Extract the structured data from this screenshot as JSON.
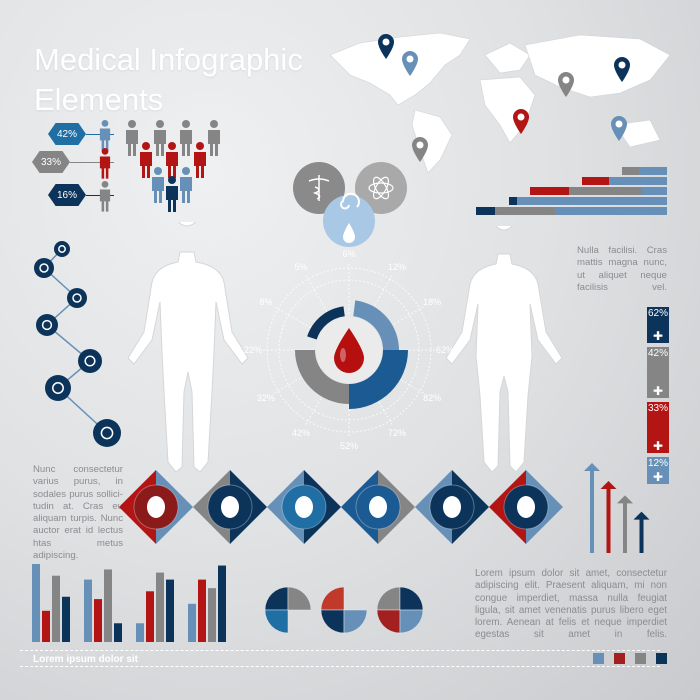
{
  "title": {
    "line1": "Medical Infographic",
    "line2": "Elements"
  },
  "colors": {
    "navy": "#0c335a",
    "blue": "#1b5a92",
    "lightblue": "#6690b7",
    "red": "#b31414",
    "gray": "#858585",
    "paleblue": "#a9c8e6"
  },
  "people_stats": [
    {
      "value": "42%",
      "color": "#1f6fa5"
    },
    {
      "value": "33%",
      "color": "#858585"
    },
    {
      "value": "16%",
      "color": "#0c335a"
    }
  ],
  "ring_chart": {
    "center_icon": "blood-drop-icon",
    "labels": [
      "6%",
      "12%",
      "18%",
      "62%",
      "82%",
      "72%",
      "52%",
      "42%",
      "32%",
      "22%",
      "8%",
      "5%"
    ],
    "segments": [
      {
        "color": "#0c335a",
        "start_pct": 80,
        "end_pct": 98
      },
      {
        "color": "#6690b7",
        "start_pct": 2,
        "end_pct": 25
      },
      {
        "color": "#1b5a92",
        "start_pct": 25,
        "end_pct": 50
      },
      {
        "color": "#858585",
        "start_pct": 50,
        "end_pct": 75
      }
    ]
  },
  "chain_icons": [
    "medicine-bottle-icon",
    "pills-icon",
    "syringe-icon",
    "thermometer-icon",
    "glasses-icon",
    "tooth-icon",
    "atom-icon"
  ],
  "venn_icons": [
    "caduceus-icon",
    "atom-icon",
    "spiral-icon",
    "drop-icon"
  ],
  "organs": [
    "stomach-icon",
    "lungs-icon",
    "heart-icon",
    "brain-icon",
    "kidneys-icon",
    "liver-icon"
  ],
  "text_right_top": "Nulla facilisi. Cras mattis magna nunc, ut aliquet neque facilisis vel.",
  "text_left": "Nunc consectetur varius purus, in sodales purus sollici-tudin at. Cras eu aliquam turpis. Nunc auctor erat id lectus htas metus adipiscing.",
  "text_bottom_right": "Lorem ipsum dolor sit amet, consectetur adipiscing elit. Praesent aliquam, mi non congue imperdiet, massa nulla feugiat ligula, sit amet venenatis purus libero eget lorem. Aenean at felis et neque imperdiet egestas sit amet in felis.",
  "stack_bars": [
    {
      "value": "62%",
      "color": "#0c335a",
      "icon": "caduceus-icon"
    },
    {
      "value": "42%",
      "color": "#858585",
      "icon": "syringe-icon"
    },
    {
      "value": "33%",
      "color": "#b31414",
      "icon": "pills-icon"
    },
    {
      "value": "12%",
      "color": "#6690b7",
      "icon": "thermometer-icon"
    }
  ],
  "hbars": [
    [
      [
        "#858585",
        17
      ],
      [
        "#6690b7",
        28
      ]
    ],
    [
      [
        "#b31414",
        27
      ],
      [
        "#6690b7",
        58
      ]
    ],
    [
      [
        "#b31414",
        39
      ],
      [
        "#858585",
        73
      ],
      [
        "#6690b7",
        25
      ]
    ],
    [
      [
        "#0c335a",
        8
      ],
      [
        "#6690b7",
        150
      ]
    ],
    [
      [
        "#0c335a",
        19
      ],
      [
        "#858585",
        60
      ],
      [
        "#6690b7",
        112
      ]
    ]
  ],
  "arrows": [
    {
      "color": "#6690b7",
      "value": 100
    },
    {
      "color": "#b31414",
      "value": 80
    },
    {
      "color": "#858585",
      "value": 64
    },
    {
      "color": "#0c335a",
      "value": 46
    }
  ],
  "bar_groups": [
    [
      100,
      40,
      85,
      58
    ],
    [
      80,
      55,
      93,
      24
    ],
    [
      24,
      65,
      89,
      80
    ],
    [
      49,
      80,
      69,
      98
    ]
  ],
  "bar_colors": [
    "#6690b7",
    "#b31414",
    "#858585",
    "#0c335a"
  ],
  "quarter_pies": [
    [
      "#0c335a",
      "#858585",
      "#1f6fa5",
      null
    ],
    [
      "#c0392b",
      null,
      "#0c335a",
      "#6690b7"
    ],
    [
      "#858585",
      "#0c335a",
      "#a22020",
      "#6690b7"
    ]
  ],
  "map_pins": [
    "#0c335a",
    "#6690b7",
    "#858585",
    "#0c335a",
    "#b31414",
    "#6690b7",
    "#858585"
  ],
  "footer": {
    "text": "Lorem ipsum dolor sit",
    "swatches": [
      "#6690b7",
      "#a22020",
      "#858585",
      "#0c335a"
    ]
  }
}
